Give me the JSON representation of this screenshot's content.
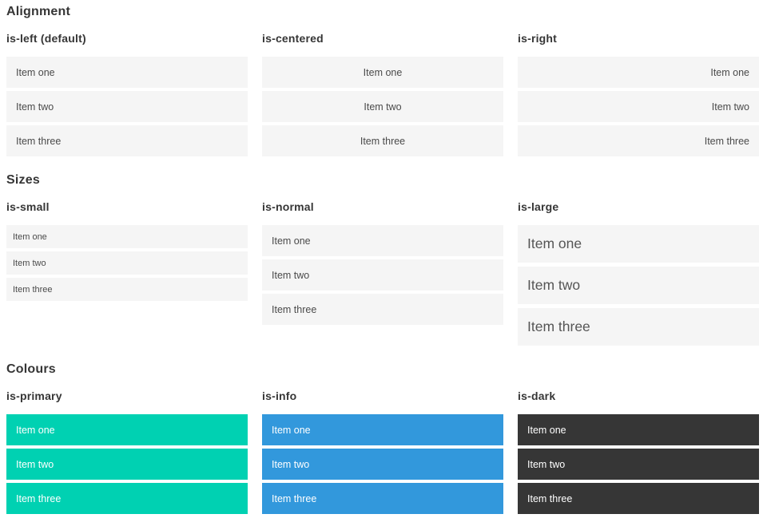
{
  "sections": [
    {
      "title": "Alignment",
      "columns": [
        {
          "label": "is-left (default)",
          "items": [
            "Item one",
            "Item two",
            "Item three"
          ]
        },
        {
          "label": "is-centered",
          "items": [
            "Item one",
            "Item two",
            "Item three"
          ]
        },
        {
          "label": "is-right",
          "items": [
            "Item one",
            "Item two",
            "Item three"
          ]
        }
      ]
    },
    {
      "title": "Sizes",
      "columns": [
        {
          "label": "is-small",
          "items": [
            "Item one",
            "Item two",
            "Item three"
          ]
        },
        {
          "label": "is-normal",
          "items": [
            "Item one",
            "Item two",
            "Item three"
          ]
        },
        {
          "label": "is-large",
          "items": [
            "Item one",
            "Item two",
            "Item three"
          ]
        }
      ]
    },
    {
      "title": "Colours",
      "columns": [
        {
          "label": "is-primary",
          "items": [
            "Item one",
            "Item two",
            "Item three"
          ]
        },
        {
          "label": "is-info",
          "items": [
            "Item one",
            "Item two",
            "Item three"
          ]
        },
        {
          "label": "is-dark",
          "items": [
            "Item one",
            "Item two",
            "Item three"
          ]
        }
      ]
    }
  ],
  "colors": {
    "primary": "#00d1b2",
    "info": "#3298dc",
    "dark": "#363636",
    "item_background": "#f5f5f5"
  }
}
